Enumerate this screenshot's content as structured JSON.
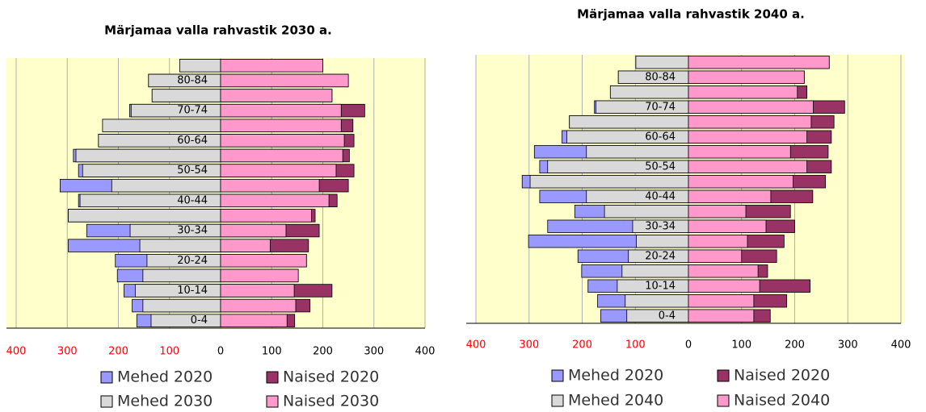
{
  "chart_data": [
    {
      "type": "bar",
      "orientation": "horizontal",
      "title": "Märjamaa valla rahvastik 2030 a.",
      "categories": [
        "0-4",
        null,
        "10-14",
        null,
        "20-24",
        null,
        "30-34",
        null,
        "40-44",
        null,
        "50-54",
        null,
        "60-64",
        null,
        "70-74",
        null,
        "80-84",
        null
      ],
      "series": [
        {
          "name": "Mehed 2020",
          "color": "#9999ff",
          "values": [
            -164,
            -173,
            -189,
            -202,
            -206,
            -298,
            -262,
            -298,
            -278,
            -314,
            -278,
            -288,
            -239,
            -231,
            -178,
            -134,
            -141,
            -80
          ]
        },
        {
          "name": "Naised 2020",
          "color": "#993366",
          "values": [
            145,
            175,
            218,
            152,
            168,
            172,
            193,
            185,
            228,
            250,
            261,
            252,
            261,
            259,
            282,
            218,
            250,
            200
          ]
        },
        {
          "name": "Mehed 2030",
          "color": "#d9d9d9",
          "values": [
            -136,
            -152,
            -167,
            -152,
            -144,
            -158,
            -177,
            -298,
            -275,
            -213,
            -270,
            -283,
            -239,
            -231,
            -175,
            -134,
            -141,
            -80
          ]
        },
        {
          "name": "Naised 2030",
          "color": "#ff99cc",
          "values": [
            130,
            147,
            144,
            152,
            168,
            97,
            128,
            178,
            212,
            193,
            226,
            239,
            242,
            236,
            236,
            218,
            250,
            200
          ]
        }
      ],
      "xlim": [
        -400,
        400
      ],
      "xticks": [
        {
          "value": -400,
          "label": "400"
        },
        {
          "value": -300,
          "label": "300"
        },
        {
          "value": -200,
          "label": "200"
        },
        {
          "value": -100,
          "label": "100"
        },
        0,
        100,
        200,
        300,
        400
      ],
      "grid": true,
      "negative_tick_color": "#ff0000",
      "plot_background": "#ffffcc"
    },
    {
      "type": "bar",
      "orientation": "horizontal",
      "title": "Märjamaa valla rahvastik 2040 a.",
      "categories": [
        "0-4",
        null,
        "10-14",
        null,
        "20-24",
        null,
        "30-34",
        null,
        "40-44",
        null,
        "50-54",
        null,
        "60-64",
        null,
        "70-74",
        null,
        "80-84",
        null
      ],
      "series": [
        {
          "name": "Mehed 2020",
          "color": "#9999ff",
          "values": [
            -165,
            -171,
            -189,
            -201,
            -208,
            -301,
            -265,
            -214,
            -280,
            -313,
            -280,
            -290,
            -238,
            -224,
            -177,
            -147,
            -132,
            -99
          ]
        },
        {
          "name": "Naised 2020",
          "color": "#993366",
          "values": [
            154,
            185,
            229,
            149,
            166,
            180,
            200,
            192,
            234,
            258,
            269,
            263,
            269,
            274,
            294,
            223,
            218,
            265
          ]
        },
        {
          "name": "Mehed 2040",
          "color": "#d9d9d9",
          "values": [
            -116,
            -119,
            -134,
            -125,
            -113,
            -98,
            -105,
            -158,
            -192,
            -298,
            -265,
            -192,
            -229,
            -224,
            -174,
            -147,
            -132,
            -99
          ]
        },
        {
          "name": "Naised 2040",
          "color": "#ff99cc",
          "values": [
            123,
            123,
            134,
            131,
            100,
            111,
            146,
            108,
            155,
            197,
            223,
            192,
            223,
            231,
            235,
            205,
            218,
            265
          ]
        }
      ],
      "xlim": [
        -400,
        400
      ],
      "xticks": [
        {
          "value": -400,
          "label": "400"
        },
        {
          "value": -300,
          "label": "300"
        },
        {
          "value": -200,
          "label": "200"
        },
        {
          "value": -100,
          "label": "100"
        },
        0,
        100,
        200,
        300,
        400
      ],
      "grid": true,
      "negative_tick_color": "#ff0000",
      "plot_background": "#ffffcc"
    }
  ]
}
